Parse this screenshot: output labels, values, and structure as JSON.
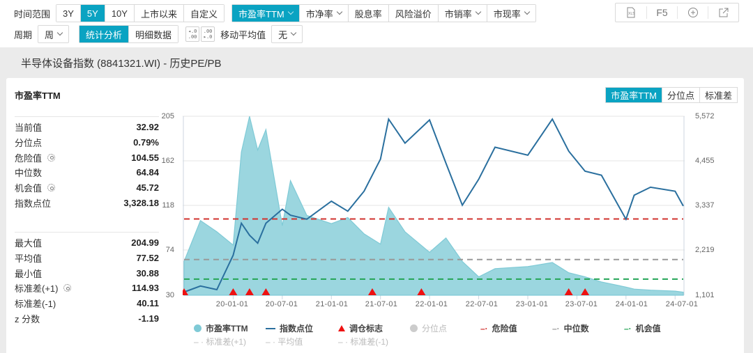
{
  "toolbar": {
    "time_range_label": "时间范围",
    "time_ranges": [
      "3Y",
      "5Y",
      "10Y",
      "上市以来",
      "自定义"
    ],
    "time_range_active": "5Y",
    "metrics": [
      {
        "label": "市盈率TTM",
        "dropdown": true,
        "active": true
      },
      {
        "label": "市净率",
        "dropdown": true,
        "active": false
      },
      {
        "label": "股息率",
        "dropdown": false,
        "active": false
      },
      {
        "label": "风险溢价",
        "dropdown": false,
        "active": false
      },
      {
        "label": "市销率",
        "dropdown": true,
        "active": false
      },
      {
        "label": "市现率",
        "dropdown": true,
        "active": false
      }
    ],
    "period_label": "周期",
    "period_value": "周",
    "views": [
      "统计分析",
      "明细数据"
    ],
    "view_active": "统计分析",
    "decimal_increase": "+.0 / .00",
    "decimal_decrease": ".00 / -.0",
    "ma_label": "移动平均值",
    "ma_value": "无",
    "tools": {
      "xls": "XLS",
      "refresh": "F5",
      "add": "⊕",
      "export": "↗"
    }
  },
  "page_title": "半导体设备指数 (8841321.WI) - 历史PE/PB",
  "card": {
    "title": "市盈率TTM",
    "tabs": [
      "市盈率TTM",
      "分位点",
      "标准差"
    ],
    "tab_active": "市盈率TTM"
  },
  "stats": {
    "current": [
      {
        "label": "当前值",
        "value": "32.92",
        "gear": false
      },
      {
        "label": "分位点",
        "value": "0.79%",
        "gear": false
      },
      {
        "label": "危险值",
        "value": "104.55",
        "gear": true
      },
      {
        "label": "中位数",
        "value": "64.84",
        "gear": false
      },
      {
        "label": "机会值",
        "value": "45.72",
        "gear": true
      },
      {
        "label": "指数点位",
        "value": "3,328.18",
        "gear": false
      }
    ],
    "summary": [
      {
        "label": "最大值",
        "value": "204.99",
        "gear": false
      },
      {
        "label": "平均值",
        "value": "77.52",
        "gear": false
      },
      {
        "label": "最小值",
        "value": "30.88",
        "gear": false
      },
      {
        "label": "标准差(+1)",
        "value": "114.93",
        "gear": true
      },
      {
        "label": "标准差(-1)",
        "value": "40.11",
        "gear": false
      },
      {
        "label": "z 分数",
        "value": "-1.19",
        "gear": false
      }
    ]
  },
  "colors": {
    "accent": "#0aa3c2",
    "pe_area": "#9bd6df",
    "pe_line": "#7fcad6",
    "index_line": "#2a6f9e",
    "danger": "#d0312d",
    "median": "#999999",
    "opportunity": "#23a455",
    "marker": "#ee1111"
  },
  "chart_data": {
    "type": "line",
    "title": "市盈率TTM",
    "x_tick_labels": [
      "20-01-01",
      "20-07-01",
      "21-01-01",
      "21-07-01",
      "22-01-01",
      "22-07-01",
      "23-01-01",
      "23-07-01",
      "24-01-01",
      "24-07-01"
    ],
    "y_left": {
      "label": "市盈率TTM",
      "ticks": [
        "30",
        "74",
        "118",
        "162",
        "205"
      ],
      "range": [
        30,
        205
      ]
    },
    "y_right": {
      "label": "指数点位",
      "ticks": [
        "1,101",
        "2,219",
        "3,337",
        "4,455",
        "5,572"
      ],
      "range": [
        1101,
        5572
      ]
    },
    "x": [
      "19-07",
      "19-09",
      "19-11",
      "20-01",
      "20-02",
      "20-03",
      "20-04",
      "20-05",
      "20-07",
      "20-08",
      "20-10",
      "21-01",
      "21-03",
      "21-05",
      "21-07",
      "21-08",
      "21-10",
      "22-01",
      "22-03",
      "22-05",
      "22-07",
      "22-09",
      "23-01",
      "23-04",
      "23-06",
      "23-08",
      "23-10",
      "24-01",
      "24-02",
      "24-04",
      "24-07",
      "24-08"
    ],
    "series": [
      {
        "name": "市盈率TTM",
        "type": "area",
        "values": [
          63,
          103,
          92,
          79,
          170,
          205,
          172,
          192,
          98,
          142,
          108,
          100,
          106,
          90,
          80,
          116,
          92,
          72,
          86,
          63,
          48,
          56,
          58,
          62,
          52,
          48,
          43,
          38,
          36,
          35,
          34,
          33
        ]
      },
      {
        "name": "指数点位",
        "type": "line",
        "axis": "right",
        "values": [
          1180,
          1330,
          1240,
          2100,
          2900,
          2600,
          2400,
          2900,
          3250,
          3100,
          3000,
          3450,
          3200,
          3700,
          4500,
          5500,
          4900,
          5480,
          4400,
          3350,
          4000,
          4800,
          4600,
          5500,
          4700,
          4200,
          4100,
          3000,
          3600,
          3800,
          3700,
          3330
        ]
      }
    ],
    "reference_lines": [
      {
        "name": "危险值",
        "value": 104.55,
        "color": "#d0312d",
        "style": "dashed"
      },
      {
        "name": "中位数",
        "value": 64.84,
        "color": "#999999",
        "style": "dashed"
      },
      {
        "name": "机会值",
        "value": 45.72,
        "color": "#23a455",
        "style": "dashed"
      }
    ],
    "markers": {
      "name": "调仓标志",
      "dates": [
        "19-07",
        "20-01",
        "20-03",
        "20-05",
        "21-06",
        "21-12",
        "23-06",
        "23-08"
      ]
    },
    "legend": [
      {
        "label": "市盈率TTM",
        "symbol": "circle",
        "enabled": true
      },
      {
        "label": "指数点位",
        "symbol": "line",
        "enabled": true
      },
      {
        "label": "调仓标志",
        "symbol": "triangle",
        "enabled": true
      },
      {
        "label": "分位点",
        "symbol": "circle",
        "enabled": false
      },
      {
        "label": "危险值",
        "symbol": "dashed",
        "enabled": true
      },
      {
        "label": "中位数",
        "symbol": "dashed",
        "enabled": true
      },
      {
        "label": "机会值",
        "symbol": "dashed",
        "enabled": true
      },
      {
        "label": "标准差(+1)",
        "symbol": "dashed",
        "enabled": false
      },
      {
        "label": "平均值",
        "symbol": "dashed",
        "enabled": false
      },
      {
        "label": "标准差(-1)",
        "symbol": "dashed",
        "enabled": false
      }
    ],
    "grid": true,
    "legend_position": "bottom"
  }
}
